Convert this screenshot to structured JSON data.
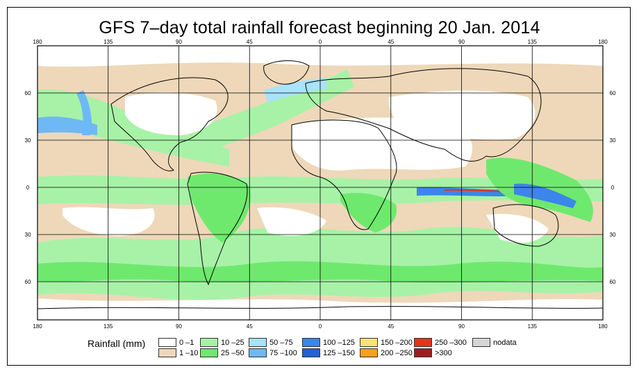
{
  "title": "GFS 7–day total rainfall forecast beginning 20 Jan. 2014",
  "axes": {
    "top_lon_labels": [
      "180",
      "135",
      "90",
      "45",
      "0",
      "45",
      "90",
      "135",
      "180"
    ],
    "bottom_lon_labels": [
      "180",
      "135",
      "90",
      "45",
      "0",
      "45",
      "90",
      "135",
      "180"
    ],
    "lat_labels": [
      "60",
      "30",
      "0",
      "30",
      "60"
    ]
  },
  "legend": {
    "title": "Rainfall (mm)",
    "items": [
      {
        "label": "0 –1",
        "color": "#ffffff"
      },
      {
        "label": "1 –10",
        "color": "#eed8b9"
      },
      {
        "label": "10 –25",
        "color": "#a7f2a7"
      },
      {
        "label": "25 –50",
        "color": "#6ee96e"
      },
      {
        "label": "50 –75",
        "color": "#a8e2fb"
      },
      {
        "label": "75 –100",
        "color": "#6fb8f6"
      },
      {
        "label": "100 –125",
        "color": "#3b86e8"
      },
      {
        "label": "125 –150",
        "color": "#1f63d6"
      },
      {
        "label": "150 –200",
        "color": "#fce27a"
      },
      {
        "label": "200 –250",
        "color": "#f9a11c"
      },
      {
        "label": "250 –300",
        "color": "#e8321a"
      },
      {
        "label": ">300",
        "color": "#a01d1d"
      },
      {
        "label": "nodata",
        "color": "#d6d6d6"
      }
    ]
  },
  "colors": {
    "land_outline": "#000000",
    "grid": "#000000"
  }
}
